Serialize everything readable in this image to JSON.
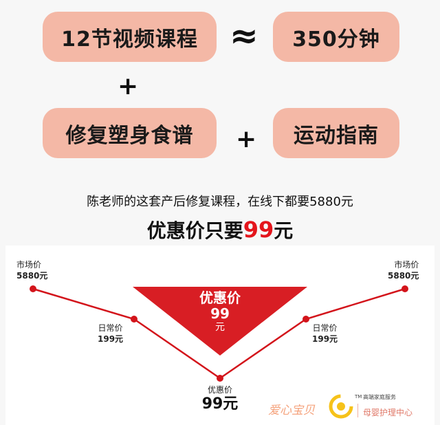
{
  "top_row": {
    "left": "12节视频课程",
    "approx": "≈",
    "right": "350分钟"
  },
  "plus_1": "+",
  "second_row": {
    "left": "修复塑身食谱",
    "plus": "+",
    "right": "运动指南"
  },
  "description": "陈老师的这套产后修复课程，在线下都要5880元",
  "offer": {
    "prefix": "优惠价只要",
    "price": "99",
    "suffix": "元"
  },
  "price_chart": {
    "left_market": {
      "label": "市场价",
      "value": "5880元"
    },
    "left_daily": {
      "label": "日常价",
      "value": "199元"
    },
    "center_promo": {
      "label": "优惠价",
      "value": "99元"
    },
    "right_daily": {
      "label": "日常价",
      "value": "199元"
    },
    "right_market": {
      "label": "市场价",
      "value": "5880元"
    },
    "triangle": {
      "line1": "优惠价",
      "line2": "99",
      "line3": "元"
    }
  },
  "brand": {
    "name": "爱心宝贝",
    "tm": "TM",
    "tagline": "高端家庭服务",
    "service": "母婴护理中心"
  },
  "colors": {
    "pill": "#f4b8a6",
    "accent_red": "#e4151c",
    "line_red": "#d3141b",
    "triangle_red": "#d81e24"
  }
}
